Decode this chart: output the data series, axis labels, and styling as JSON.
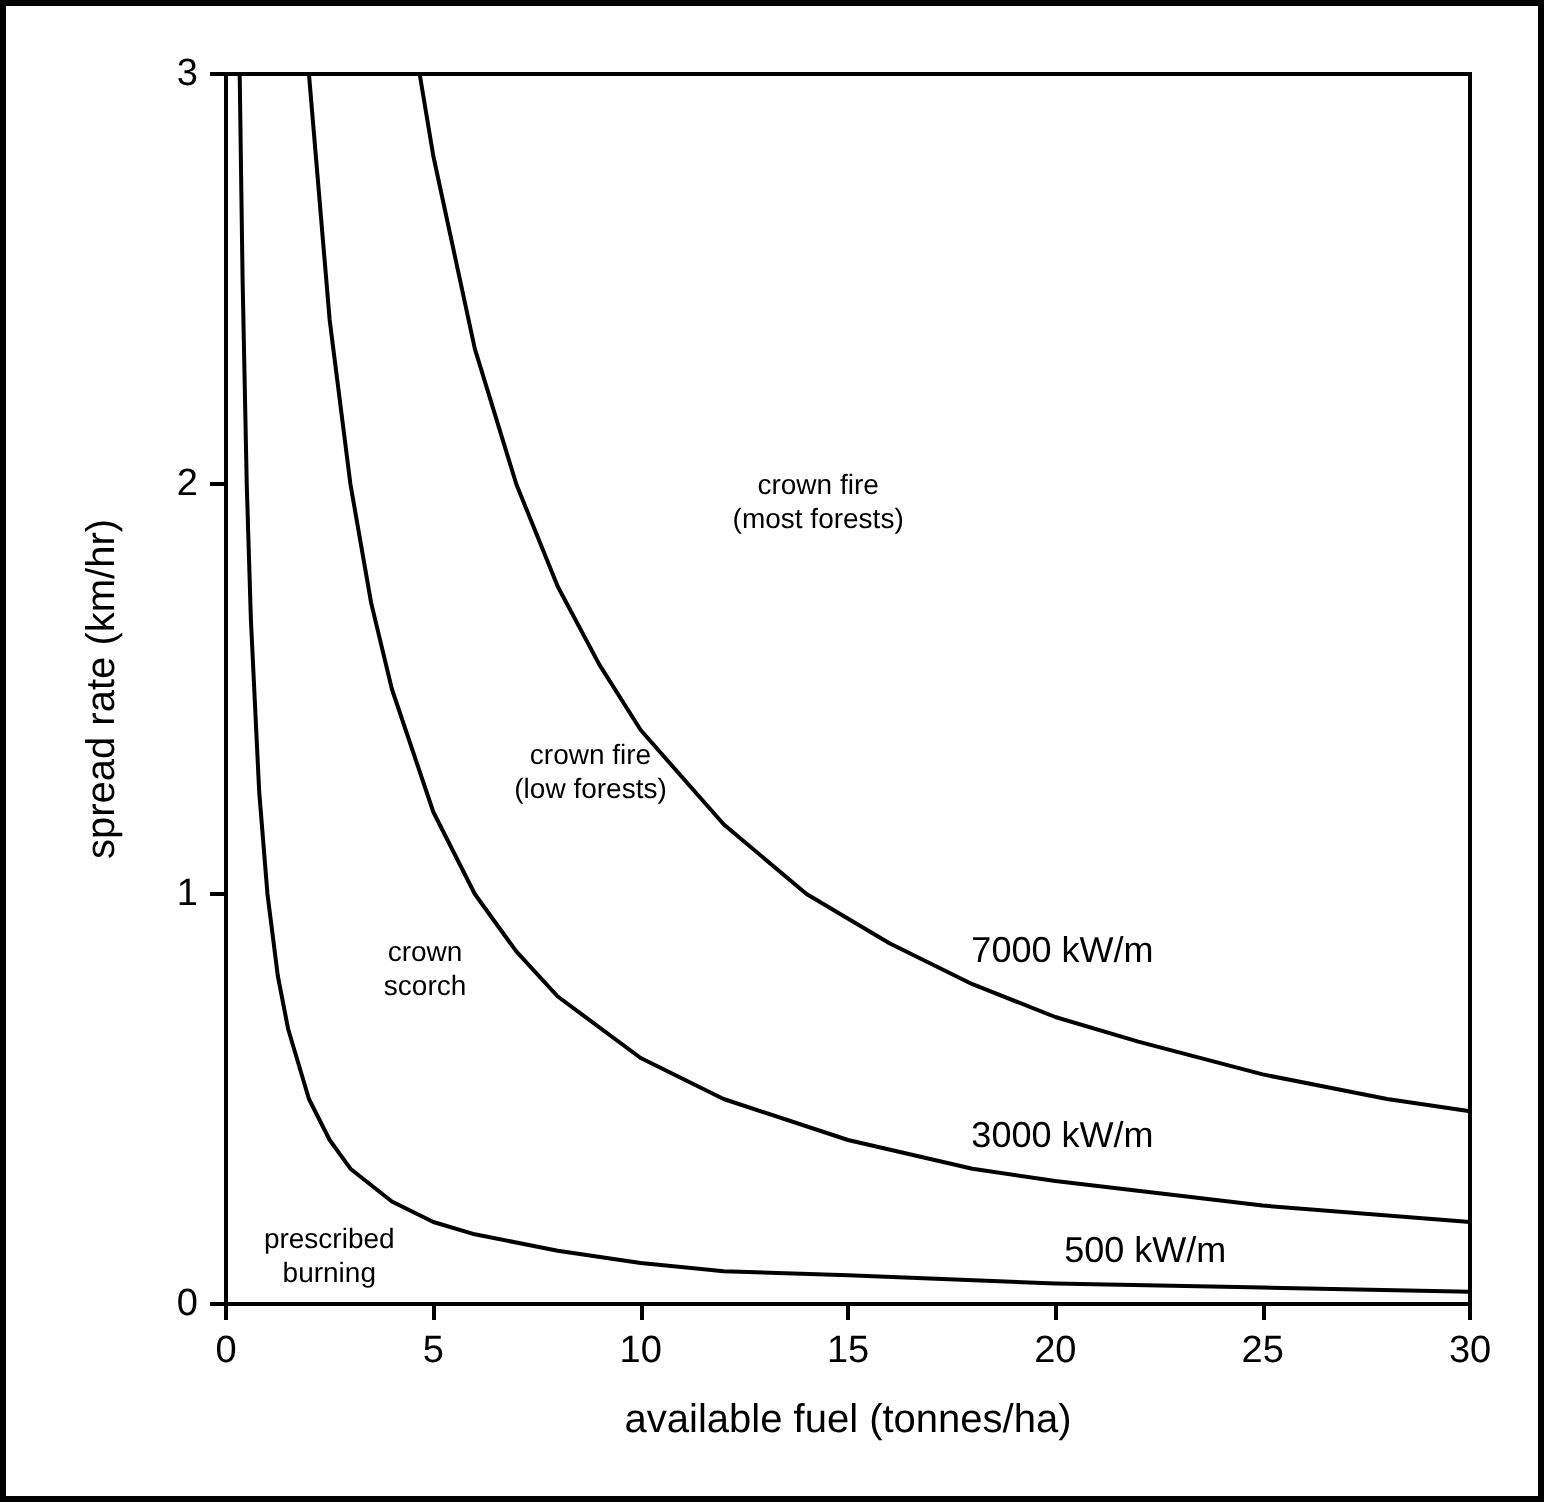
{
  "chart_data": {
    "type": "line",
    "xlabel": "available fuel (tonnes/ha)",
    "ylabel": "spread rate (km/hr)",
    "xlim": [
      0,
      30
    ],
    "xticks": [
      0,
      5,
      10,
      15,
      20,
      25,
      30
    ],
    "ylim": [
      0,
      3
    ],
    "yticks": [
      0,
      1,
      2,
      3
    ],
    "grid": false,
    "marker": "none",
    "line_style": "solid",
    "series": [
      {
        "name": "500 kW/m",
        "color": "#000000",
        "x": [
          0.33,
          0.4,
          0.5,
          0.6,
          0.8,
          1,
          1.25,
          1.5,
          2,
          2.5,
          3,
          4,
          5,
          6,
          8,
          10,
          12,
          15,
          20,
          25,
          30
        ],
        "values": [
          3,
          2.5,
          2,
          1.67,
          1.25,
          1,
          0.8,
          0.67,
          0.5,
          0.4,
          0.33,
          0.25,
          0.2,
          0.17,
          0.13,
          0.1,
          0.08,
          0.07,
          0.05,
          0.04,
          0.03
        ]
      },
      {
        "name": "3000 kW/m",
        "color": "#000000",
        "x": [
          2,
          2.5,
          3,
          3.5,
          4,
          5,
          6,
          7,
          8,
          10,
          12,
          15,
          18,
          20,
          25,
          30
        ],
        "values": [
          3,
          2.4,
          2,
          1.71,
          1.5,
          1.2,
          1,
          0.86,
          0.75,
          0.6,
          0.5,
          0.4,
          0.33,
          0.3,
          0.24,
          0.2
        ]
      },
      {
        "name": "7000 kW/m",
        "color": "#000000",
        "x": [
          4.67,
          5,
          6,
          7,
          8,
          9,
          10,
          12,
          14,
          16,
          18,
          20,
          22,
          25,
          28,
          30
        ],
        "values": [
          3,
          2.8,
          2.33,
          2,
          1.75,
          1.56,
          1.4,
          1.17,
          1,
          0.88,
          0.78,
          0.7,
          0.64,
          0.56,
          0.5,
          0.47
        ]
      }
    ],
    "annotations": [
      "crown fire\n(most forests)",
      "crown fire\n(low forests)",
      "crown\nscorch",
      "prescribed\nburning"
    ]
  }
}
